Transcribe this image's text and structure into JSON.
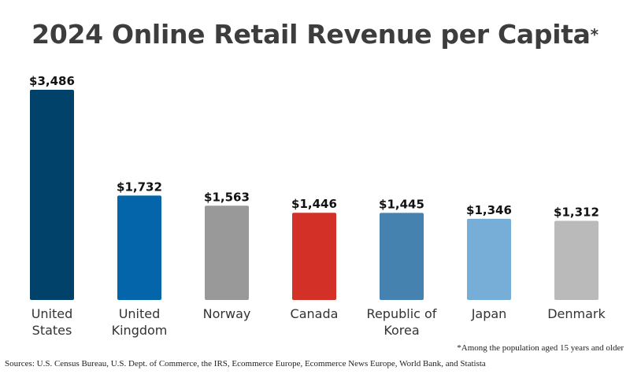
{
  "chart_data": {
    "type": "bar",
    "title": "2024 Online Retail Revenue per Capita",
    "title_marker": "*",
    "categories": [
      "United States",
      "United Kingdom",
      "Norway",
      "Canada",
      "Republic of Korea",
      "Japan",
      "Denmark"
    ],
    "category_lines": [
      [
        "United",
        "States"
      ],
      [
        "United",
        "Kingdom"
      ],
      [
        "Norway"
      ],
      [
        "Canada"
      ],
      [
        "Republic of",
        "Korea"
      ],
      [
        "Japan"
      ],
      [
        "Denmark"
      ]
    ],
    "values": [
      3486,
      1732,
      1563,
      1446,
      1445,
      1346,
      1312
    ],
    "value_labels": [
      "$3,486",
      "$1,732",
      "$1,563",
      "$1,446",
      "$1,445",
      "$1,346",
      "$1,312"
    ],
    "colors": [
      "#01426a",
      "#0565ab",
      "#999999",
      "#d33127",
      "#4682b0",
      "#76aed8",
      "#bababa"
    ],
    "ylim": [
      0,
      3486
    ],
    "grid": false,
    "xlabel": "",
    "ylabel": ""
  },
  "footnote": "*Among the population aged 15 years and older",
  "sources": "Sources: U.S. Census Bureau, U.S. Dept. of Commerce, the IRS, Ecommerce Europe, Ecommerce News Europe, World Bank, and Statista"
}
